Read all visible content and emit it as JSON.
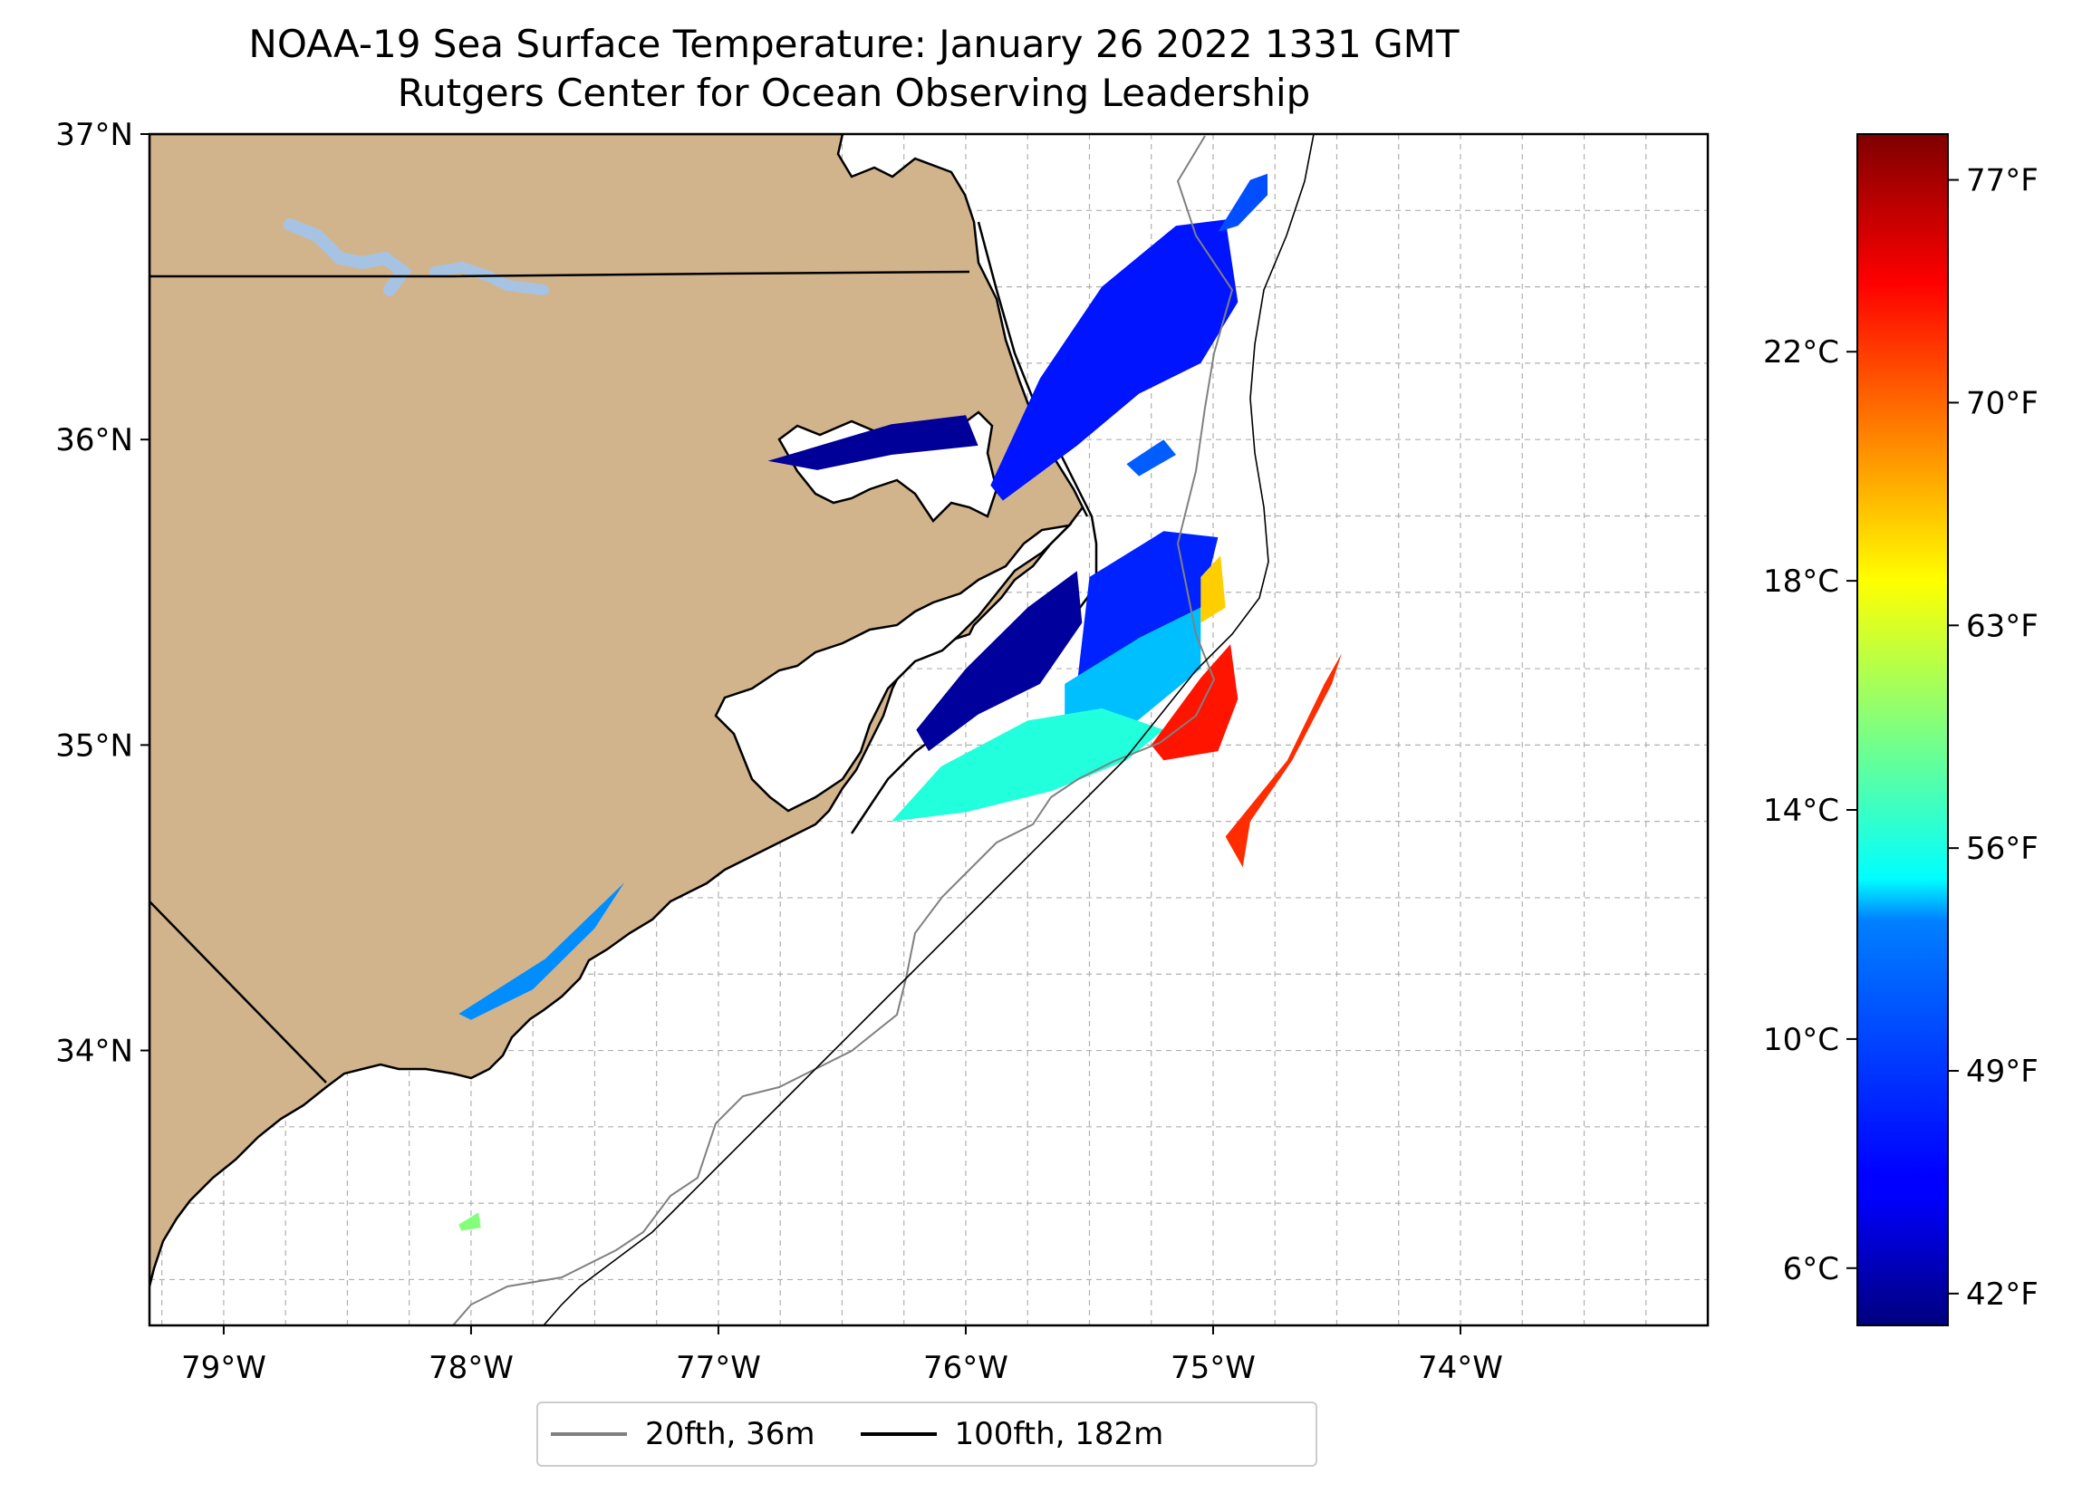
{
  "title": {
    "line1": "NOAA-19 Sea Surface Temperature: January 26 2022 1331 GMT",
    "line2": "Rutgers Center for Ocean Observing Leadership"
  },
  "map": {
    "lon_range": [
      -79.3,
      -73.0
    ],
    "lat_range": [
      33.1,
      37.0
    ],
    "lon_ticks": [
      {
        "value": -79,
        "label": "79°W"
      },
      {
        "value": -78,
        "label": "78°W"
      },
      {
        "value": -77,
        "label": "77°W"
      },
      {
        "value": -76,
        "label": "76°W"
      },
      {
        "value": -75,
        "label": "75°W"
      },
      {
        "value": -74,
        "label": "74°W"
      }
    ],
    "lat_ticks": [
      {
        "value": 37,
        "label": "37°N"
      },
      {
        "value": 36,
        "label": "36°N"
      },
      {
        "value": 35,
        "label": "35°N"
      },
      {
        "value": 34,
        "label": "34°N"
      }
    ],
    "minor_grid_step_deg": 0.25,
    "colors": {
      "land": "#d2b48c",
      "water": "#ffffff",
      "lakes": "#a6c3e3",
      "coast": "#000000",
      "grid": "#b0b0b0",
      "isobath_20fth": "#808080",
      "isobath_100fth": "#000000"
    }
  },
  "legend": {
    "items": [
      {
        "label": "20fth, 36m",
        "color": "#808080"
      },
      {
        "label": "100fth, 182m",
        "color": "#000000"
      }
    ]
  },
  "colorbar": {
    "colormap": "jet",
    "range_c": [
      5.0,
      25.8
    ],
    "celsius_ticks": [
      {
        "value": 6,
        "label": "6°C"
      },
      {
        "value": 10,
        "label": "10°C"
      },
      {
        "value": 14,
        "label": "14°C"
      },
      {
        "value": 18,
        "label": "18°C"
      },
      {
        "value": 22,
        "label": "22°C"
      }
    ],
    "fahrenheit_ticks": [
      {
        "value": 42,
        "label": "42°F"
      },
      {
        "value": 49,
        "label": "49°F"
      },
      {
        "value": 56,
        "label": "56°F"
      },
      {
        "value": 63,
        "label": "63°F"
      },
      {
        "value": 70,
        "label": "70°F"
      },
      {
        "value": 77,
        "label": "77°F"
      }
    ]
  },
  "sst_patches": [
    {
      "temp_c": 8.0,
      "points": [
        [
          -75.9,
          35.85
        ],
        [
          -75.7,
          36.2
        ],
        [
          -75.45,
          36.5
        ],
        [
          -75.15,
          36.7
        ],
        [
          -74.95,
          36.72
        ],
        [
          -74.9,
          36.45
        ],
        [
          -75.05,
          36.25
        ],
        [
          -75.3,
          36.15
        ],
        [
          -75.55,
          35.98
        ],
        [
          -75.85,
          35.8
        ]
      ]
    },
    {
      "temp_c": 9.2,
      "points": [
        [
          -74.98,
          36.68
        ],
        [
          -74.85,
          36.85
        ],
        [
          -74.78,
          36.87
        ],
        [
          -74.78,
          36.8
        ],
        [
          -74.9,
          36.7
        ]
      ]
    },
    {
      "temp_c": 9.5,
      "points": [
        [
          -75.35,
          35.92
        ],
        [
          -75.2,
          36.0
        ],
        [
          -75.15,
          35.95
        ],
        [
          -75.3,
          35.88
        ]
      ]
    },
    {
      "temp_c": 5.5,
      "points": [
        [
          -76.8,
          35.93
        ],
        [
          -76.3,
          36.05
        ],
        [
          -76.0,
          36.08
        ],
        [
          -75.95,
          35.98
        ],
        [
          -76.3,
          35.95
        ],
        [
          -76.6,
          35.9
        ]
      ]
    },
    {
      "temp_c": 5.6,
      "points": [
        [
          -76.2,
          35.05
        ],
        [
          -76.0,
          35.25
        ],
        [
          -75.75,
          35.45
        ],
        [
          -75.55,
          35.57
        ],
        [
          -75.53,
          35.4
        ],
        [
          -75.7,
          35.2
        ],
        [
          -75.95,
          35.1
        ],
        [
          -76.15,
          34.98
        ]
      ]
    },
    {
      "temp_c": 8.3,
      "points": [
        [
          -75.5,
          35.55
        ],
        [
          -75.2,
          35.7
        ],
        [
          -74.98,
          35.68
        ],
        [
          -75.05,
          35.45
        ],
        [
          -75.3,
          35.35
        ],
        [
          -75.55,
          35.2
        ]
      ]
    },
    {
      "temp_c": 11.5,
      "points": [
        [
          -75.6,
          35.2
        ],
        [
          -75.3,
          35.35
        ],
        [
          -75.05,
          35.45
        ],
        [
          -75.05,
          35.25
        ],
        [
          -75.35,
          35.05
        ],
        [
          -75.6,
          35.05
        ]
      ]
    },
    {
      "temp_c": 13.5,
      "points": [
        [
          -76.3,
          34.75
        ],
        [
          -76.1,
          34.93
        ],
        [
          -75.75,
          35.08
        ],
        [
          -75.45,
          35.12
        ],
        [
          -75.2,
          35.05
        ],
        [
          -75.35,
          34.95
        ],
        [
          -75.65,
          34.85
        ],
        [
          -76.0,
          34.78
        ]
      ]
    },
    {
      "temp_c": 19.0,
      "points": [
        [
          -75.05,
          35.55
        ],
        [
          -74.97,
          35.62
        ],
        [
          -74.95,
          35.45
        ],
        [
          -75.05,
          35.4
        ]
      ]
    },
    {
      "temp_c": 22.8,
      "points": [
        [
          -75.25,
          35.0
        ],
        [
          -75.05,
          35.22
        ],
        [
          -74.93,
          35.33
        ],
        [
          -74.9,
          35.15
        ],
        [
          -74.98,
          34.98
        ],
        [
          -75.2,
          34.95
        ]
      ]
    },
    {
      "temp_c": 22.3,
      "points": [
        [
          -74.85,
          34.8
        ],
        [
          -74.7,
          34.95
        ],
        [
          -74.55,
          35.2
        ],
        [
          -74.48,
          35.3
        ],
        [
          -74.52,
          35.2
        ],
        [
          -74.68,
          34.95
        ],
        [
          -74.85,
          34.75
        ],
        [
          -74.88,
          34.6
        ],
        [
          -74.95,
          34.7
        ]
      ]
    },
    {
      "temp_c": 10.5,
      "points": [
        [
          -78.05,
          34.12
        ],
        [
          -77.7,
          34.3
        ],
        [
          -77.38,
          34.55
        ],
        [
          -77.5,
          34.4
        ],
        [
          -77.75,
          34.2
        ],
        [
          -78.0,
          34.1
        ]
      ]
    },
    {
      "temp_c": 15.5,
      "points": [
        [
          -78.05,
          33.43
        ],
        [
          -77.97,
          33.47
        ],
        [
          -77.96,
          33.42
        ],
        [
          -78.04,
          33.41
        ]
      ]
    }
  ]
}
